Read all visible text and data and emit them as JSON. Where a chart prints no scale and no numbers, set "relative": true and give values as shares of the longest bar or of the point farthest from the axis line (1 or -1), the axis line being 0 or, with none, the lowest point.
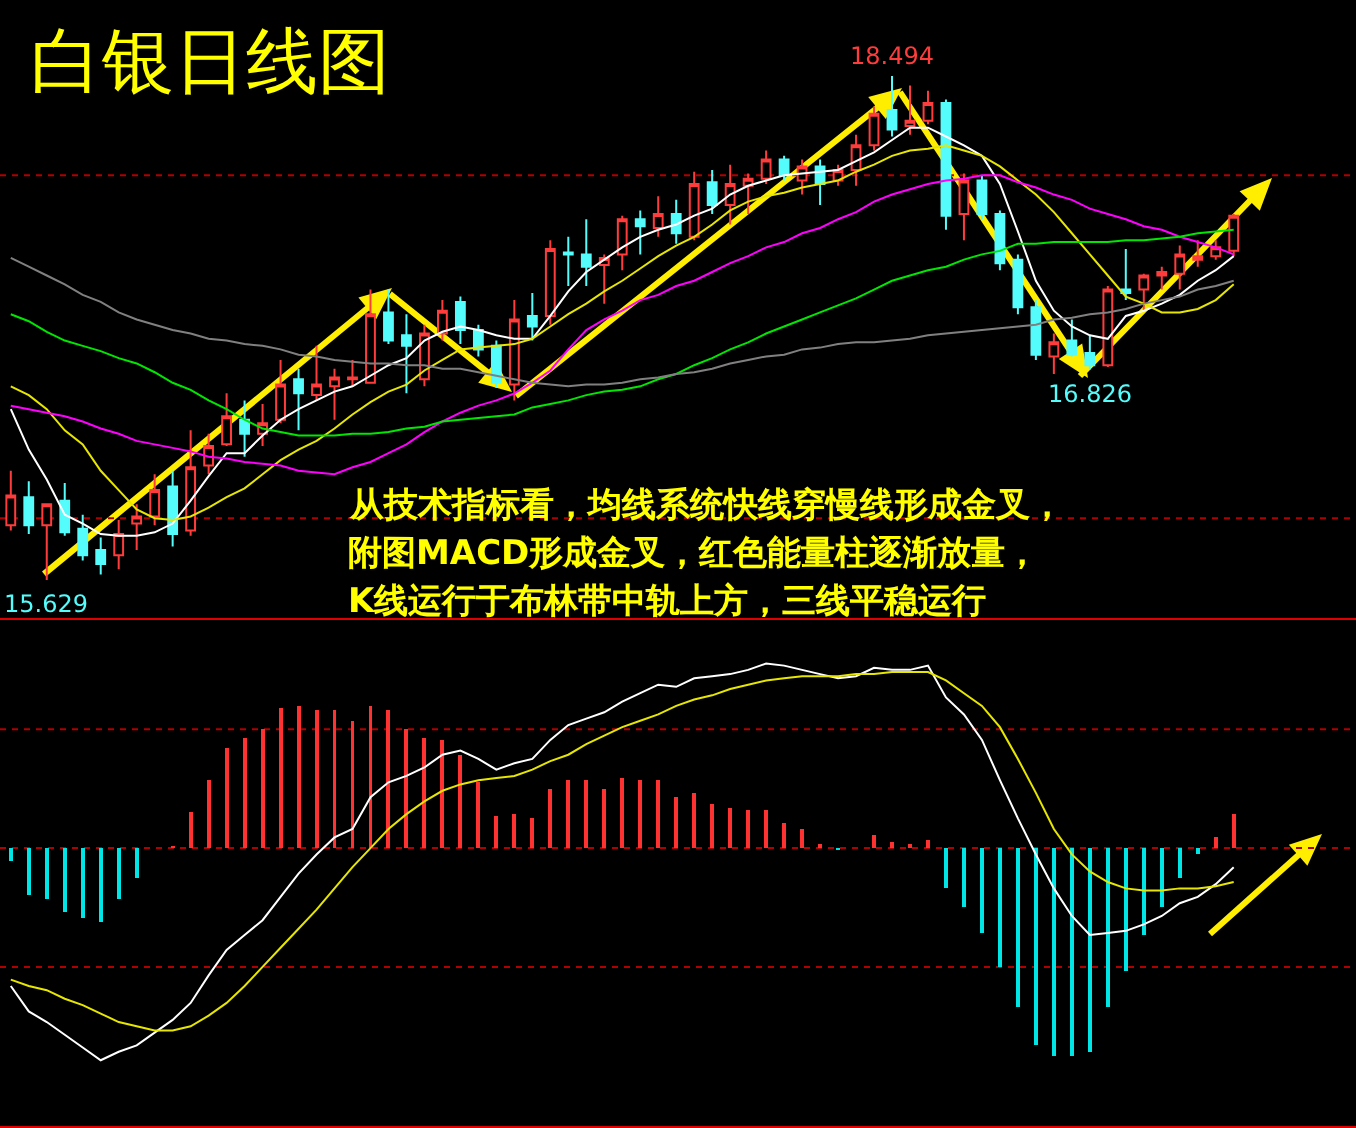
{
  "chart_data": [
    {
      "type": "candlestick",
      "title": "白银日线图",
      "categories": [
        null,
        null,
        null,
        null,
        null,
        null,
        null,
        null,
        null,
        null,
        null,
        null,
        null,
        null,
        null,
        null,
        null,
        null,
        null,
        null,
        null,
        null,
        null,
        null,
        null,
        null,
        null,
        null,
        null,
        null,
        null,
        null,
        null,
        null,
        null,
        null,
        null,
        null,
        null,
        null,
        null,
        null,
        null,
        null,
        null,
        null,
        null,
        null,
        null,
        null,
        null,
        null,
        null,
        null,
        null,
        null,
        null,
        null,
        null,
        null,
        null,
        null,
        null,
        null,
        null,
        null,
        null,
        null,
        null
      ],
      "ohlc": [
        [
          15.94,
          16.25,
          15.91,
          16.11
        ],
        [
          16.1,
          16.19,
          15.89,
          15.94
        ],
        [
          15.94,
          16.06,
          15.629,
          16.06
        ],
        [
          16.08,
          16.18,
          15.88,
          15.9
        ],
        [
          15.92,
          16.0,
          15.74,
          15.77
        ],
        [
          15.8,
          15.87,
          15.66,
          15.72
        ],
        [
          15.77,
          15.97,
          15.69,
          15.89
        ],
        [
          15.95,
          16.06,
          15.8,
          15.99
        ],
        [
          15.99,
          16.23,
          15.94,
          16.14
        ],
        [
          16.16,
          16.25,
          15.82,
          15.89
        ],
        [
          15.91,
          16.48,
          15.88,
          16.27
        ],
        [
          16.28,
          16.46,
          16.23,
          16.39
        ],
        [
          16.4,
          16.69,
          16.39,
          16.56
        ],
        [
          16.54,
          16.65,
          16.33,
          16.46
        ],
        [
          16.46,
          16.63,
          16.39,
          16.52
        ],
        [
          16.54,
          16.88,
          16.52,
          16.74
        ],
        [
          16.77,
          16.83,
          16.48,
          16.69
        ],
        [
          16.68,
          16.96,
          16.65,
          16.74
        ],
        [
          16.73,
          16.83,
          16.54,
          16.78
        ],
        [
          16.77,
          16.88,
          16.73,
          16.78
        ],
        [
          16.75,
          17.28,
          16.75,
          17.14
        ],
        [
          17.15,
          17.28,
          16.97,
          16.99
        ],
        [
          17.02,
          17.14,
          16.69,
          16.96
        ],
        [
          16.77,
          17.08,
          16.73,
          17.03
        ],
        [
          17.03,
          17.22,
          16.99,
          17.16
        ],
        [
          17.21,
          17.24,
          16.97,
          17.05
        ],
        [
          17.05,
          17.08,
          16.9,
          16.94
        ],
        [
          16.96,
          16.99,
          16.72,
          16.75
        ],
        [
          16.74,
          17.22,
          16.65,
          17.11
        ],
        [
          17.13,
          17.26,
          16.99,
          17.07
        ],
        [
          17.13,
          17.56,
          17.08,
          17.51
        ],
        [
          17.49,
          17.58,
          17.3,
          17.48
        ],
        [
          17.48,
          17.68,
          17.3,
          17.41
        ],
        [
          17.42,
          17.48,
          17.2,
          17.46
        ],
        [
          17.48,
          17.7,
          17.39,
          17.68
        ],
        [
          17.68,
          17.73,
          17.48,
          17.64
        ],
        [
          17.63,
          17.81,
          17.58,
          17.71
        ],
        [
          17.71,
          17.79,
          17.54,
          17.6
        ],
        [
          17.58,
          17.95,
          17.56,
          17.88
        ],
        [
          17.89,
          17.96,
          17.71,
          17.76
        ],
        [
          17.76,
          17.99,
          17.65,
          17.88
        ],
        [
          17.87,
          17.94,
          17.71,
          17.91
        ],
        [
          17.91,
          18.07,
          17.88,
          18.02
        ],
        [
          18.02,
          18.04,
          17.9,
          17.93
        ],
        [
          17.9,
          18.02,
          17.82,
          17.98
        ],
        [
          17.98,
          18.02,
          17.76,
          17.88
        ],
        [
          17.9,
          17.99,
          17.87,
          17.96
        ],
        [
          17.96,
          18.16,
          17.87,
          18.1
        ],
        [
          18.1,
          18.32,
          18.07,
          18.28
        ],
        [
          18.3,
          18.494,
          18.15,
          18.19
        ],
        [
          18.21,
          18.44,
          18.16,
          18.24
        ],
        [
          18.24,
          18.41,
          18.22,
          18.34
        ],
        [
          18.34,
          18.36,
          17.62,
          17.7
        ],
        [
          17.71,
          17.94,
          17.56,
          17.9
        ],
        [
          17.9,
          17.93,
          17.68,
          17.71
        ],
        [
          17.71,
          17.73,
          17.39,
          17.43
        ],
        [
          17.45,
          17.48,
          17.14,
          17.18
        ],
        [
          17.18,
          17.22,
          16.88,
          16.91
        ],
        [
          16.9,
          17.03,
          16.8,
          16.98
        ],
        [
          16.99,
          17.11,
          16.9,
          16.91
        ],
        [
          16.92,
          17.02,
          16.826,
          16.85
        ],
        [
          16.85,
          17.3,
          16.84,
          17.28
        ],
        [
          17.28,
          17.51,
          17.22,
          17.26
        ],
        [
          17.28,
          17.37,
          17.16,
          17.36
        ],
        [
          17.36,
          17.41,
          17.28,
          17.38
        ],
        [
          17.37,
          17.53,
          17.28,
          17.48
        ],
        [
          17.45,
          17.56,
          17.41,
          17.47
        ],
        [
          17.47,
          17.56,
          17.45,
          17.52
        ],
        [
          17.5,
          17.71,
          17.47,
          17.7
        ]
      ],
      "colors": [
        "#ff3c3c",
        "#54fcfc",
        "#ff3c3c",
        "#54fcfc",
        "#54fcfc",
        "#54fcfc",
        "#ff3c3c",
        "#ff3c3c",
        "#ff3c3c",
        "#54fcfc",
        "#ff3c3c",
        "#ff3c3c",
        "#ff3c3c",
        "#54fcfc",
        "#ff3c3c",
        "#ff3c3c",
        "#54fcfc",
        "#ff3c3c",
        "#ff3c3c",
        "#ff3c3c",
        "#ff3c3c",
        "#54fcfc",
        "#54fcfc",
        "#ff3c3c",
        "#ff3c3c",
        "#54fcfc",
        "#54fcfc",
        "#54fcfc",
        "#ff3c3c",
        "#54fcfc",
        "#ff3c3c",
        "#54fcfc",
        "#54fcfc",
        "#ff3c3c",
        "#ff3c3c",
        "#54fcfc",
        "#ff3c3c",
        "#54fcfc",
        "#ff3c3c",
        "#54fcfc",
        "#ff3c3c",
        "#ff3c3c",
        "#ff3c3c",
        "#54fcfc",
        "#ff3c3c",
        "#54fcfc",
        "#ff3c3c",
        "#ff3c3c",
        "#ff3c3c",
        "#54fcfc",
        "#ff3c3c",
        "#ff3c3c",
        "#54fcfc",
        "#ff3c3c",
        "#54fcfc",
        "#54fcfc",
        "#54fcfc",
        "#54fcfc",
        "#ff3c3c",
        "#54fcfc",
        "#54fcfc",
        "#ff3c3c",
        "#54fcfc",
        "#ff3c3c",
        "#ff3c3c",
        "#ff3c3c",
        "#ff3c3c",
        "#ff3c3c",
        "#ff3c3c"
      ],
      "series": [
        {
          "type": "line",
          "color": "#ffffff",
          "values": [
            16.6,
            16.37,
            16.2,
            16.0,
            15.95,
            15.89,
            15.88,
            15.88,
            15.9,
            15.95,
            16.08,
            16.22,
            16.35,
            16.35,
            16.45,
            16.54,
            16.6,
            16.65,
            16.7,
            16.73,
            16.79,
            16.85,
            16.89,
            16.99,
            17.04,
            17.07,
            17.05,
            17.02,
            17.0,
            17.0,
            17.13,
            17.27,
            17.38,
            17.45,
            17.52,
            17.58,
            17.62,
            17.65,
            17.7,
            17.74,
            17.82,
            17.87,
            17.9,
            17.93,
            17.94,
            17.95,
            17.96,
            18.01,
            18.06,
            18.13,
            18.2,
            18.2,
            18.15,
            18.1,
            18.04,
            17.88,
            17.61,
            17.33,
            17.16,
            17.07,
            17.02,
            17.0,
            17.13,
            17.16,
            17.2,
            17.25,
            17.33,
            17.39,
            17.47
          ]
        },
        {
          "type": "line",
          "color": "#e6e600",
          "values": [
            16.73,
            16.68,
            16.6,
            16.48,
            16.4,
            16.25,
            16.14,
            16.03,
            15.98,
            15.97,
            15.99,
            16.04,
            16.1,
            16.15,
            16.23,
            16.31,
            16.37,
            16.42,
            16.49,
            16.57,
            16.64,
            16.7,
            16.74,
            16.82,
            16.88,
            16.94,
            16.95,
            16.96,
            16.97,
            17.0,
            17.07,
            17.14,
            17.2,
            17.27,
            17.33,
            17.4,
            17.47,
            17.53,
            17.58,
            17.65,
            17.73,
            17.78,
            17.81,
            17.83,
            17.86,
            17.88,
            17.9,
            17.95,
            17.99,
            18.04,
            18.07,
            18.08,
            18.1,
            18.07,
            18.04,
            17.98,
            17.9,
            17.82,
            17.72,
            17.6,
            17.48,
            17.36,
            17.24,
            17.2,
            17.15,
            17.15,
            17.17,
            17.22,
            17.31
          ]
        },
        {
          "type": "line",
          "color": "#ff00ff",
          "values": [
            16.62,
            16.6,
            16.58,
            16.56,
            16.53,
            16.49,
            16.46,
            16.42,
            16.4,
            16.38,
            16.36,
            16.33,
            16.32,
            16.3,
            16.29,
            16.28,
            16.25,
            16.24,
            16.23,
            16.27,
            16.3,
            16.35,
            16.4,
            16.47,
            16.53,
            16.58,
            16.62,
            16.65,
            16.69,
            16.75,
            16.82,
            16.94,
            17.05,
            17.11,
            17.16,
            17.22,
            17.25,
            17.3,
            17.33,
            17.38,
            17.43,
            17.47,
            17.52,
            17.55,
            17.6,
            17.63,
            17.68,
            17.72,
            17.78,
            17.82,
            17.85,
            17.88,
            17.9,
            17.91,
            17.93,
            17.93,
            17.89,
            17.86,
            17.82,
            17.79,
            17.74,
            17.71,
            17.68,
            17.64,
            17.62,
            17.58,
            17.55,
            17.52,
            17.48
          ]
        },
        {
          "type": "line",
          "color": "#00e600",
          "values": [
            17.14,
            17.1,
            17.04,
            16.99,
            16.96,
            16.93,
            16.89,
            16.86,
            16.81,
            16.75,
            16.71,
            16.65,
            16.6,
            16.54,
            16.49,
            16.47,
            16.45,
            16.45,
            16.45,
            16.46,
            16.46,
            16.47,
            16.49,
            16.5,
            16.53,
            16.54,
            16.55,
            16.56,
            16.57,
            16.61,
            16.63,
            16.65,
            16.68,
            16.7,
            16.71,
            16.73,
            16.77,
            16.8,
            16.85,
            16.89,
            16.94,
            16.98,
            17.03,
            17.07,
            17.11,
            17.15,
            17.19,
            17.23,
            17.28,
            17.33,
            17.36,
            17.39,
            17.41,
            17.45,
            17.48,
            17.5,
            17.54,
            17.54,
            17.55,
            17.55,
            17.55,
            17.55,
            17.56,
            17.56,
            17.57,
            17.58,
            17.6,
            17.61,
            17.62
          ]
        },
        {
          "type": "line",
          "color": "#808080",
          "values": [
            17.46,
            17.41,
            17.36,
            17.31,
            17.25,
            17.21,
            17.15,
            17.11,
            17.08,
            17.05,
            17.03,
            17.0,
            16.99,
            16.97,
            16.96,
            16.94,
            16.91,
            16.9,
            16.88,
            16.87,
            16.86,
            16.86,
            16.85,
            16.85,
            16.83,
            16.83,
            16.81,
            16.79,
            16.77,
            16.75,
            16.74,
            16.73,
            16.74,
            16.74,
            16.75,
            16.77,
            16.78,
            16.8,
            16.81,
            16.83,
            16.86,
            16.88,
            16.9,
            16.91,
            16.94,
            16.95,
            16.97,
            16.98,
            16.98,
            16.99,
            17.0,
            17.02,
            17.03,
            17.04,
            17.05,
            17.06,
            17.07,
            17.08,
            17.11,
            17.12,
            17.14,
            17.15,
            17.17,
            17.2,
            17.22,
            17.24,
            17.28,
            17.3,
            17.33
          ]
        }
      ],
      "ref_lines": [
        {
          "axis": "y",
          "value": 17.93,
          "color": "#b00000",
          "line_style": "dotted"
        },
        {
          "axis": "y",
          "value": 15.98,
          "color": "#b00000",
          "line_style": "dotted"
        }
      ],
      "annotations": [
        {
          "text": "18.494",
          "y": 18.494
        },
        {
          "text": "15.629",
          "y": 15.629
        },
        {
          "text": "16.826",
          "y": 16.826
        },
        "从技术指标看，均线系统快线穿慢线形成金叉，",
        "附图MACD形成金叉，红色能量柱逐渐放量，",
        "K线运行于布林带中轨上方，三线平稳运行"
      ]
    },
    {
      "type": "bar",
      "relative": true,
      "categories": [
        null,
        null,
        null,
        null,
        null,
        null,
        null,
        null,
        null,
        null,
        null,
        null,
        null,
        null,
        null,
        null,
        null,
        null,
        null,
        null,
        null,
        null,
        null,
        null,
        null,
        null,
        null,
        null,
        null,
        null,
        null,
        null,
        null,
        null,
        null,
        null,
        null,
        null,
        null,
        null,
        null,
        null,
        null,
        null,
        null,
        null,
        null,
        null,
        null,
        null,
        null,
        null,
        null,
        null,
        null,
        null,
        null,
        null,
        null,
        null,
        null,
        null,
        null,
        null,
        null,
        null,
        null,
        null,
        null
      ],
      "series": [
        {
          "type": "bar",
          "values": [
            -0.06,
            -0.22,
            -0.24,
            -0.3,
            -0.33,
            -0.35,
            -0.24,
            -0.14,
            null,
            0.01,
            0.17,
            0.32,
            0.47,
            0.52,
            0.56,
            0.66,
            0.67,
            0.65,
            0.65,
            0.6,
            0.67,
            0.65,
            0.56,
            0.52,
            0.51,
            0.44,
            0.31,
            0.15,
            0.16,
            0.14,
            0.28,
            0.32,
            0.32,
            0.28,
            0.33,
            0.32,
            0.32,
            0.24,
            0.26,
            0.21,
            0.19,
            0.18,
            0.18,
            0.12,
            0.09,
            0.02,
            -0.01,
            null,
            0.06,
            0.03,
            0.02,
            0.04,
            -0.19,
            -0.28,
            -0.4,
            -0.56,
            -0.75,
            -0.93,
            -0.98,
            -0.98,
            -0.96,
            -0.75,
            -0.58,
            -0.41,
            -0.28,
            -0.14,
            -0.03,
            0.05,
            0.16
          ],
          "colors": [
            "#00e5e5",
            "#00e5e5",
            "#00e5e5",
            "#00e5e5",
            "#00e5e5",
            "#00e5e5",
            "#00e5e5",
            "#00e5e5",
            null,
            "#ff3232",
            "#ff3232",
            "#ff3232",
            "#ff3232",
            "#ff3232",
            "#ff3232",
            "#ff3232",
            "#ff3232",
            "#ff3232",
            "#ff3232",
            "#ff3232",
            "#ff3232",
            "#ff3232",
            "#ff3232",
            "#ff3232",
            "#ff3232",
            "#ff3232",
            "#ff3232",
            "#ff3232",
            "#ff3232",
            "#ff3232",
            "#ff3232",
            "#ff3232",
            "#ff3232",
            "#ff3232",
            "#ff3232",
            "#ff3232",
            "#ff3232",
            "#ff3232",
            "#ff3232",
            "#ff3232",
            "#ff3232",
            "#ff3232",
            "#ff3232",
            "#ff3232",
            "#ff3232",
            "#ff3232",
            "#00e5e5",
            null,
            "#ff3232",
            "#ff3232",
            "#ff3232",
            "#ff3232",
            "#00e5e5",
            "#00e5e5",
            "#00e5e5",
            "#00e5e5",
            "#00e5e5",
            "#00e5e5",
            "#00e5e5",
            "#00e5e5",
            "#00e5e5",
            "#00e5e5",
            "#00e5e5",
            "#00e5e5",
            "#00e5e5",
            "#00e5e5",
            "#00e5e5",
            "#ff3232",
            "#ff3232"
          ]
        },
        {
          "type": "line",
          "color": "#ffffff",
          "values": [
            -0.65,
            -0.77,
            -0.82,
            -0.88,
            -0.94,
            -1,
            -0.96,
            -0.93,
            -0.87,
            -0.81,
            -0.73,
            -0.6,
            -0.48,
            -0.41,
            -0.34,
            -0.23,
            -0.12,
            -0.03,
            0.05,
            0.09,
            0.24,
            0.31,
            0.34,
            0.38,
            0.44,
            0.46,
            0.42,
            0.37,
            0.4,
            0.42,
            0.51,
            0.58,
            0.61,
            0.64,
            0.69,
            0.73,
            0.77,
            0.76,
            0.8,
            0.81,
            0.82,
            0.84,
            0.87,
            0.86,
            0.84,
            0.82,
            0.8,
            0.81,
            0.85,
            0.84,
            0.84,
            0.86,
            0.71,
            0.63,
            0.51,
            0.32,
            0.14,
            -0.03,
            -0.19,
            -0.32,
            -0.41,
            -0.4,
            -0.39,
            -0.36,
            -0.32,
            -0.26,
            -0.23,
            -0.17,
            -0.09
          ]
        },
        {
          "type": "line",
          "color": "#e6e600",
          "values": [
            -0.62,
            -0.65,
            -0.67,
            -0.71,
            -0.74,
            -0.78,
            -0.82,
            -0.84,
            -0.86,
            -0.86,
            -0.84,
            -0.79,
            -0.73,
            -0.65,
            -0.56,
            -0.47,
            -0.38,
            -0.29,
            -0.19,
            -0.09,
            0,
            0.09,
            0.16,
            0.22,
            0.27,
            0.3,
            0.32,
            0.33,
            0.34,
            0.37,
            0.41,
            0.44,
            0.49,
            0.53,
            0.57,
            0.6,
            0.63,
            0.67,
            0.7,
            0.72,
            0.75,
            0.77,
            0.79,
            0.8,
            0.81,
            0.81,
            0.81,
            0.82,
            0.82,
            0.83,
            0.83,
            0.83,
            0.79,
            0.73,
            0.67,
            0.57,
            0.42,
            0.26,
            0.09,
            -0.03,
            -0.11,
            -0.16,
            -0.19,
            -0.2,
            -0.2,
            -0.19,
            -0.19,
            -0.18,
            -0.16
          ]
        }
      ],
      "ref_lines": [
        {
          "axis": "y",
          "value": 0.56,
          "color": "#b00000",
          "line_style": "dotted"
        },
        {
          "axis": "y",
          "value": 0,
          "color": "#b00000",
          "line_style": "dotted"
        },
        {
          "axis": "y",
          "value": -0.56,
          "color": "#b00000",
          "line_style": "dotted"
        }
      ]
    }
  ]
}
